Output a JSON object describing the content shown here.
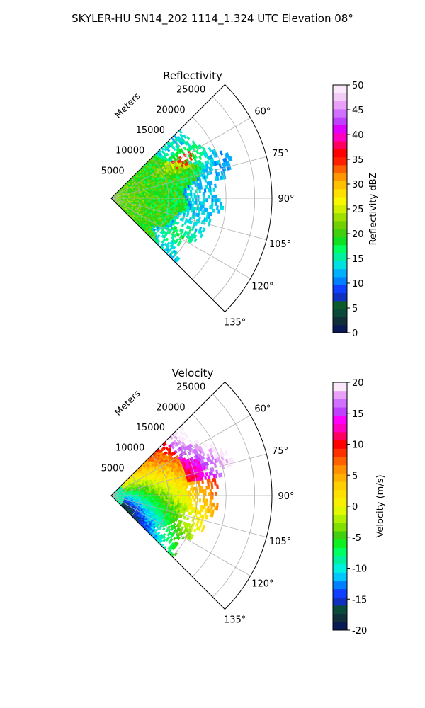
{
  "suptitle": "SKYLER-HU  SN14_202  1114_1.324 UTC Elevation 08°",
  "chart_data": [
    {
      "type": "heatmap",
      "projection": "polar-sector",
      "title": "Reflectivity",
      "range_axis_label": "Meters",
      "range_ticks": [
        "5000",
        "10000",
        "15000",
        "20000",
        "25000"
      ],
      "range_tick_values": [
        5000,
        10000,
        15000,
        20000,
        25000
      ],
      "angle_ticks": [
        "60°",
        "75°",
        "90°",
        "105°",
        "120°",
        "135°"
      ],
      "angle_tick_values": [
        60,
        75,
        90,
        105,
        120,
        135
      ],
      "theta_range_deg": [
        45,
        135
      ],
      "grid": true,
      "colorbar": {
        "label": "Reflectivity dBZ",
        "min": 0,
        "max": 50,
        "ticks": [
          "0",
          "5",
          "10",
          "15",
          "20",
          "25",
          "30",
          "35",
          "40",
          "45",
          "50"
        ],
        "tick_values": [
          0,
          5,
          10,
          15,
          20,
          25,
          30,
          35,
          40,
          45,
          50
        ],
        "colors": [
          "#0a1a55",
          "#0f2f3a",
          "#0a4a3a",
          "#0b5a2a",
          "#1030c0",
          "#1040ff",
          "#0080ff",
          "#00b0ff",
          "#00e0e0",
          "#00f0a0",
          "#00ff60",
          "#10e020",
          "#40d010",
          "#70d000",
          "#a0e000",
          "#d0f000",
          "#f8f800",
          "#ffe000",
          "#ffc000",
          "#ff9800",
          "#ff6000",
          "#ff2000",
          "#ff0000",
          "#ff0060",
          "#ff00c0",
          "#e000ff",
          "#c040ff",
          "#d070ff",
          "#e8a0f8",
          "#f4ccf8",
          "#fbe8fb"
        ]
      }
    },
    {
      "type": "heatmap",
      "projection": "polar-sector",
      "title": "Velocity",
      "range_axis_label": "Meters",
      "range_ticks": [
        "5000",
        "10000",
        "15000",
        "20000",
        "25000"
      ],
      "range_tick_values": [
        5000,
        10000,
        15000,
        20000,
        25000
      ],
      "angle_ticks": [
        "60°",
        "75°",
        "90°",
        "105°",
        "120°",
        "135°"
      ],
      "angle_tick_values": [
        60,
        75,
        90,
        105,
        120,
        135
      ],
      "theta_range_deg": [
        45,
        135
      ],
      "grid": true,
      "colorbar": {
        "label": "Velocity (m/s)",
        "min": -20,
        "max": 20,
        "ticks": [
          "-20",
          "-15",
          "-10",
          "-5",
          "0",
          "5",
          "10",
          "15",
          "20"
        ],
        "tick_values": [
          -20,
          -15,
          -10,
          -5,
          0,
          5,
          10,
          15,
          20
        ],
        "colors": [
          "#0a1a55",
          "#0f2f3a",
          "#0a4a3a",
          "#1030c0",
          "#1040ff",
          "#0080ff",
          "#00c8ff",
          "#00f0e0",
          "#00f0a0",
          "#00ff60",
          "#10f020",
          "#40d010",
          "#80e000",
          "#b0f000",
          "#e0f800",
          "#f8f000",
          "#ffe000",
          "#ffd000",
          "#ffb000",
          "#ff9000",
          "#ff6000",
          "#ff3000",
          "#ff0000",
          "#ff0060",
          "#ff00c0",
          "#ff00ff",
          "#c040ff",
          "#d070ff",
          "#e8a0f8",
          "#fbe8fb"
        ]
      }
    }
  ]
}
